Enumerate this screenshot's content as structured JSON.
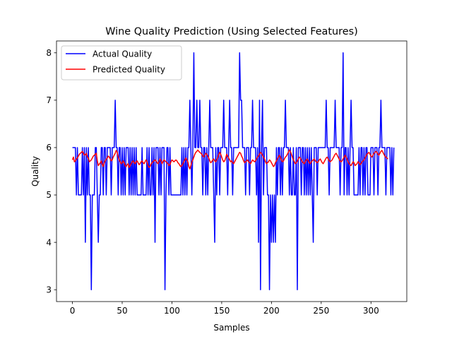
{
  "chart_data": {
    "type": "line",
    "title": "Wine Quality Prediction (Using Selected Features)",
    "xlabel": "Samples",
    "ylabel": "Quality",
    "xlim": [
      -16,
      336
    ],
    "ylim": [
      2.75,
      8.25
    ],
    "xticks": [
      0,
      50,
      100,
      150,
      200,
      250,
      300
    ],
    "yticks": [
      3,
      4,
      5,
      6,
      7,
      8
    ],
    "grid": false,
    "legend_position": "upper left",
    "series": [
      {
        "name": "Actual Quality",
        "color": "#0000ff",
        "values": [
          6,
          6,
          6,
          6,
          5,
          6,
          5,
          5,
          5,
          5,
          6,
          5,
          6,
          4,
          6,
          5,
          6,
          5,
          5,
          3,
          5,
          5,
          5,
          6,
          6,
          5,
          4,
          5,
          5,
          6,
          6,
          5,
          6,
          6,
          5,
          6,
          6,
          6,
          6,
          5,
          6,
          6,
          6,
          7,
          6,
          6,
          5,
          6,
          6,
          5,
          6,
          5,
          6,
          5,
          6,
          6,
          6,
          5,
          6,
          5,
          6,
          5,
          6,
          5,
          6,
          5,
          5,
          5,
          5,
          5,
          6,
          5,
          5,
          5,
          5,
          6,
          5,
          6,
          5,
          5,
          6,
          5,
          6,
          4,
          6,
          6,
          6,
          5,
          6,
          5,
          6,
          6,
          6,
          3,
          5,
          6,
          6,
          5,
          6,
          5,
          5,
          5,
          5,
          5,
          5,
          5,
          5,
          5,
          5,
          5,
          6,
          5,
          6,
          5,
          6,
          5,
          6,
          6,
          7,
          6,
          5,
          6,
          8,
          6,
          6,
          7,
          6,
          6,
          7,
          6,
          6,
          5,
          6,
          6,
          5,
          6,
          5,
          6,
          7,
          6,
          6,
          6,
          5,
          4,
          6,
          5,
          6,
          6,
          5,
          6,
          6,
          6,
          7,
          6,
          6,
          6,
          5,
          6,
          7,
          6,
          6,
          5,
          6,
          6,
          6,
          6,
          6,
          6,
          8,
          7,
          7,
          6,
          6,
          6,
          5,
          6,
          6,
          6,
          5,
          6,
          6,
          7,
          6,
          6,
          6,
          5,
          6,
          4,
          7,
          3,
          6,
          7,
          5,
          6,
          6,
          6,
          5,
          5,
          3,
          5,
          4,
          5,
          4,
          5,
          4,
          6,
          5,
          6,
          6,
          5,
          6,
          5,
          6,
          6,
          7,
          6,
          6,
          6,
          5,
          6,
          5,
          5,
          6,
          5,
          5,
          6,
          3,
          6,
          6,
          6,
          5,
          6,
          6,
          5,
          6,
          5,
          6,
          5,
          6,
          5,
          6,
          5,
          4,
          6,
          6,
          6,
          5,
          6,
          6,
          6,
          6,
          6,
          6,
          6,
          6,
          7,
          6,
          6,
          5,
          6,
          6,
          6,
          6,
          6,
          7,
          6,
          6,
          6,
          6,
          5,
          6,
          6,
          8,
          5,
          6,
          6,
          5,
          6,
          5,
          6,
          7,
          6,
          6,
          5,
          5,
          5,
          5,
          5,
          6,
          5,
          6,
          6,
          5,
          6,
          5,
          6,
          6,
          5,
          5,
          5,
          6,
          6,
          6,
          5,
          6,
          6,
          6,
          5,
          6,
          6,
          7,
          6,
          6,
          6,
          6,
          5,
          6,
          6,
          6,
          6,
          5,
          6,
          5,
          6
        ]
      },
      {
        "name": "Predicted Quality",
        "color": "#ff0000",
        "values": [
          5.74,
          5.8,
          5.7,
          5.72,
          5.76,
          5.78,
          5.82,
          5.86,
          5.88,
          5.9,
          5.92,
          5.88,
          5.84,
          5.85,
          5.88,
          5.8,
          5.78,
          5.7,
          5.72,
          5.74,
          5.78,
          5.82,
          5.84,
          5.86,
          5.88,
          5.72,
          5.62,
          5.65,
          5.68,
          5.72,
          5.64,
          5.6,
          5.68,
          5.72,
          5.75,
          5.78,
          5.82,
          5.8,
          5.76,
          5.72,
          5.74,
          5.8,
          5.84,
          5.88,
          5.94,
          5.9,
          5.8,
          5.74,
          5.7,
          5.66,
          5.68,
          5.72,
          5.68,
          5.62,
          5.6,
          5.64,
          5.66,
          5.58,
          5.62,
          5.66,
          5.7,
          5.72,
          5.68,
          5.66,
          5.7,
          5.72,
          5.68,
          5.64,
          5.66,
          5.7,
          5.72,
          5.68,
          5.66,
          5.7,
          5.74,
          5.7,
          5.62,
          5.58,
          5.6,
          5.65,
          5.68,
          5.7,
          5.72,
          5.74,
          5.72,
          5.68,
          5.66,
          5.7,
          5.76,
          5.72,
          5.66,
          5.7,
          5.74,
          5.72,
          5.7,
          5.68,
          5.66,
          5.62,
          5.64,
          5.7,
          5.74,
          5.72,
          5.7,
          5.72,
          5.74,
          5.72,
          5.68,
          5.66,
          5.62,
          5.6,
          5.62,
          5.66,
          5.7,
          5.74,
          5.78,
          5.74,
          5.7,
          5.6,
          5.55,
          5.62,
          5.7,
          5.74,
          5.8,
          5.86,
          5.9,
          5.92,
          5.95,
          5.92,
          5.9,
          5.88,
          5.86,
          5.82,
          5.8,
          5.84,
          5.88,
          5.86,
          5.82,
          5.78,
          5.72,
          5.68,
          5.7,
          5.74,
          5.76,
          5.72,
          5.7,
          5.74,
          5.78,
          5.85,
          5.9,
          5.86,
          5.8,
          5.74,
          5.7,
          5.72,
          5.78,
          5.86,
          5.82,
          5.78,
          5.74,
          5.7,
          5.72,
          5.68,
          5.66,
          5.7,
          5.74,
          5.78,
          5.82,
          5.86,
          5.9,
          5.88,
          5.82,
          5.78,
          5.72,
          5.68,
          5.7,
          5.72,
          5.74,
          5.7,
          5.68,
          5.66,
          5.7,
          5.74,
          5.72,
          5.7,
          5.72,
          5.76,
          5.8,
          5.82,
          5.86,
          5.9,
          5.88,
          5.84,
          5.8,
          5.76,
          5.7,
          5.66,
          5.68,
          5.7,
          5.74,
          5.72,
          5.68,
          5.64,
          5.6,
          5.62,
          5.68,
          5.72,
          5.76,
          5.8,
          5.84,
          5.8,
          5.74,
          5.7,
          5.72,
          5.76,
          5.8,
          5.82,
          5.86,
          5.9,
          5.95,
          5.92,
          5.86,
          5.8,
          5.74,
          5.7,
          5.66,
          5.68,
          5.72,
          5.76,
          5.8,
          5.78,
          5.74,
          5.7,
          5.68,
          5.66,
          5.7,
          5.74,
          5.76,
          5.72,
          5.68,
          5.66,
          5.7,
          5.72,
          5.74,
          5.76,
          5.72,
          5.7,
          5.68,
          5.7,
          5.74,
          5.76,
          5.72,
          5.68,
          5.66,
          5.7,
          5.74,
          5.78,
          5.8,
          5.76,
          5.72,
          5.7,
          5.72,
          5.74,
          5.78,
          5.82,
          5.86,
          5.88,
          5.84,
          5.8,
          5.76,
          5.72,
          5.7,
          5.72,
          5.76,
          5.8,
          5.84,
          5.8,
          5.76,
          5.7,
          5.66,
          5.64,
          5.62,
          5.66,
          5.7,
          5.68,
          5.62,
          5.64,
          5.66,
          5.7,
          5.68,
          5.64,
          5.66,
          5.7,
          5.72,
          5.74,
          5.78,
          5.82,
          5.86,
          5.88,
          5.9,
          5.86,
          5.82,
          5.8,
          5.84,
          5.88,
          5.9,
          5.92,
          5.9,
          5.86,
          5.84,
          5.88,
          5.92,
          5.94,
          5.9,
          5.86,
          5.82,
          5.8,
          5.78,
          5.76
        ]
      }
    ]
  }
}
